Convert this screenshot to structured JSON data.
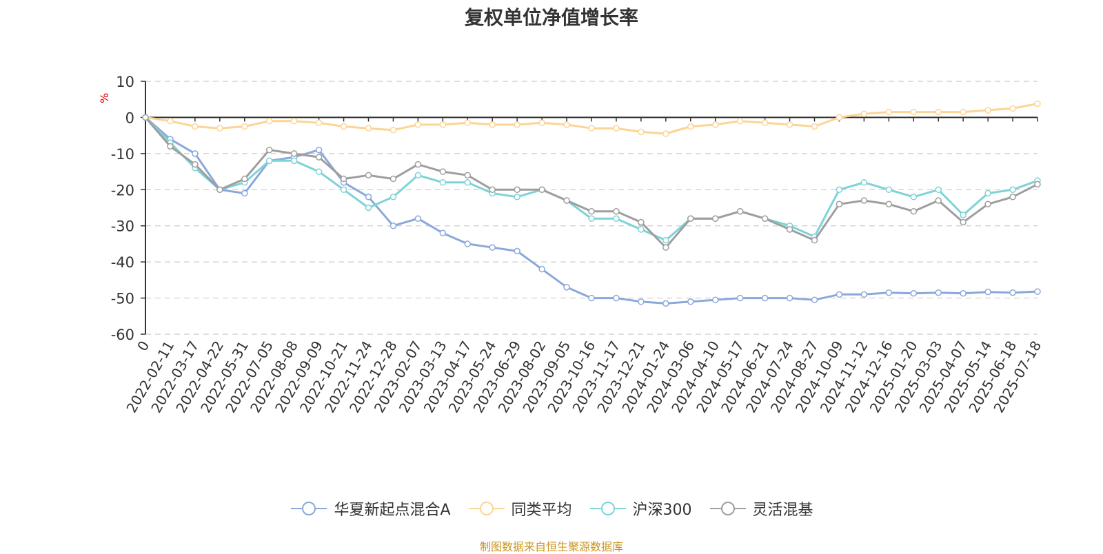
{
  "chart_data": {
    "type": "line",
    "title": "复权单位净值增长率",
    "ylabel": "%",
    "ylim": [
      -60,
      10
    ],
    "yticks": [
      10,
      0,
      -10,
      -20,
      -30,
      -40,
      -50,
      -60
    ],
    "x_tick_labels": [
      "0",
      "2022-02-11",
      "2022-03-17",
      "2022-04-22",
      "2022-05-31",
      "2022-07-05",
      "2022-08-08",
      "2022-09-09",
      "2022-10-21",
      "2022-11-24",
      "2022-12-28",
      "2023-02-07",
      "2023-03-13",
      "2023-04-17",
      "2023-05-24",
      "2023-06-29",
      "2023-08-02",
      "2023-09-05",
      "2023-10-16",
      "2023-11-17",
      "2023-12-21",
      "2024-01-24",
      "2024-03-06",
      "2024-04-10",
      "2024-05-17",
      "2024-06-21",
      "2024-07-24",
      "2024-08-27",
      "2024-10-09",
      "2024-11-12",
      "2024-12-16",
      "2025-01-20",
      "2025-03-03",
      "2025-04-07",
      "2025-05-14",
      "2025-06-18",
      "2025-07-18"
    ],
    "grid": "horizontal-dashed",
    "legend_position": "bottom-center",
    "series": [
      {
        "name": "华夏新起点混合A",
        "color": "#8aa8dc",
        "values": [
          0,
          -6,
          -10,
          -20,
          -21,
          -12,
          -11,
          -9,
          -18,
          -22,
          -30,
          -28,
          -32,
          -35,
          -36,
          -37,
          -42,
          -47,
          -50,
          -50,
          -51,
          -51.5,
          -51,
          -50.5,
          -50,
          -50,
          -50,
          -50.5,
          -49,
          -49,
          -48.5,
          -48.7,
          -48.5,
          -48.7,
          -48.3,
          -48.5,
          -48.2
        ]
      },
      {
        "name": "同类平均",
        "color": "#fdd493",
        "values": [
          0,
          -1,
          -2.5,
          -3,
          -2.5,
          -1,
          -1,
          -1.5,
          -2.5,
          -3,
          -3.5,
          -2,
          -2,
          -1.5,
          -2,
          -2,
          -1.5,
          -2,
          -3,
          -3,
          -4,
          -4.5,
          -2.5,
          -2,
          -1,
          -1.5,
          -2,
          -2.5,
          0,
          1,
          1.5,
          1.5,
          1.5,
          1.5,
          2,
          2.5,
          3.8
        ]
      },
      {
        "name": "沪深300",
        "color": "#7dd3d6",
        "values": [
          0,
          -7,
          -14,
          -20,
          -18,
          -12,
          -12,
          -15,
          -20,
          -25,
          -22,
          -16,
          -18,
          -18,
          -21,
          -22,
          -20,
          -23,
          -28,
          -28,
          -31,
          -34,
          -28,
          -28,
          -26,
          -28,
          -30,
          -33,
          -20,
          -18,
          -20,
          -22,
          -20,
          -27,
          -21,
          -20,
          -17.5
        ]
      },
      {
        "name": "灵活混基",
        "color": "#9e9e9e",
        "values": [
          0,
          -8,
          -13,
          -20,
          -17,
          -9,
          -10,
          -11,
          -17,
          -16,
          -17,
          -13,
          -15,
          -16,
          -20,
          -20,
          -20,
          -23,
          -26,
          -26,
          -29,
          -36,
          -28,
          -28,
          -26,
          -28,
          -31,
          -34,
          -24,
          -23,
          -24,
          -26,
          -23,
          -29,
          -24,
          -22,
          -18.5
        ]
      }
    ]
  },
  "legend": [
    {
      "label": "华夏新起点混合A",
      "color": "#8aa8dc"
    },
    {
      "label": "同类平均",
      "color": "#fdd493"
    },
    {
      "label": "沪深300",
      "color": "#7dd3d6"
    },
    {
      "label": "灵活混基",
      "color": "#9e9e9e"
    }
  ],
  "source_note": "制图数据来自恒生聚源数据库"
}
